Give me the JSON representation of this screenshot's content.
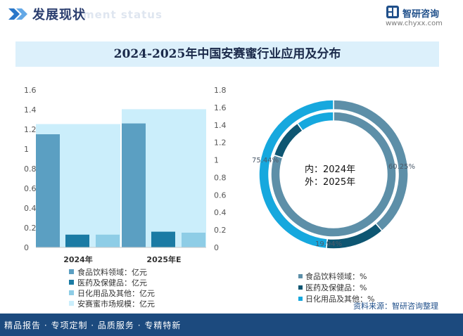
{
  "header": {
    "title": "发展现状",
    "subtitle": "ment status"
  },
  "brand": {
    "name": "智研咨询",
    "url": "www.chyxx.com"
  },
  "chart_title": "2024-2025年中国安赛蜜行业应用及分布",
  "colors": {
    "food": "#5b9fc2",
    "pharma": "#1b7ba4",
    "daily": "#8ecde6",
    "market": "#cbeefb",
    "donut_food": "#5d8fa8",
    "donut_pharma": "#0e5672",
    "donut_daily": "#16a8de"
  },
  "chart_data": [
    {
      "type": "bar",
      "categories": [
        "2024年",
        "2025年E"
      ],
      "left_axis": {
        "ylim": [
          0,
          1.6
        ],
        "ticks": [
          "1.6",
          "1.4",
          "1.2",
          "1",
          "0.8",
          "0.6",
          "0.4",
          "0.2",
          "0"
        ]
      },
      "right_axis": {
        "ylim": [
          0,
          1.8
        ],
        "ticks": [
          "1.8",
          "1.6",
          "1.4",
          "1.2",
          "1",
          "0.8",
          "0.6",
          "0.4",
          "0.2",
          "0"
        ]
      },
      "series": [
        {
          "name": "食品饮料领域：亿元",
          "axis": "left",
          "values": [
            1.15,
            1.26
          ]
        },
        {
          "name": "医药及保健品：亿元",
          "axis": "left",
          "values": [
            0.13,
            0.16
          ]
        },
        {
          "name": "日化用品及其他：亿元",
          "axis": "left",
          "values": [
            0.13,
            0.15
          ]
        },
        {
          "name": "安赛蜜市场规模：亿元",
          "axis": "right",
          "values": [
            1.41,
            1.58
          ]
        }
      ],
      "legend": [
        "食品饮料领域：亿元",
        "医药及保健品：亿元",
        "日化用品及其他：亿元",
        "安赛蜜市场规模：亿元"
      ]
    },
    {
      "type": "pie",
      "inner_label": "内：2024年",
      "outer_label": "外：2025年",
      "categories": [
        "食品饮料领域：%",
        "医药及保健品：%",
        "日化用品及其他：%"
      ],
      "inner": [
        80.0,
        10.2,
        9.8
      ],
      "outer": [
        60.25,
        19.94,
        75.44
      ],
      "labels": {
        "food": "60.25%",
        "pharma": "19.94%",
        "daily": "75.44%"
      },
      "legend": [
        "食品饮料领域：%",
        "医药及保健品：%",
        "日化用品及其他：%"
      ]
    }
  ],
  "source": "资料来源：智研咨询整理",
  "footer": "精品报告 · 专项定制 · 品质服务 · 专精特新"
}
